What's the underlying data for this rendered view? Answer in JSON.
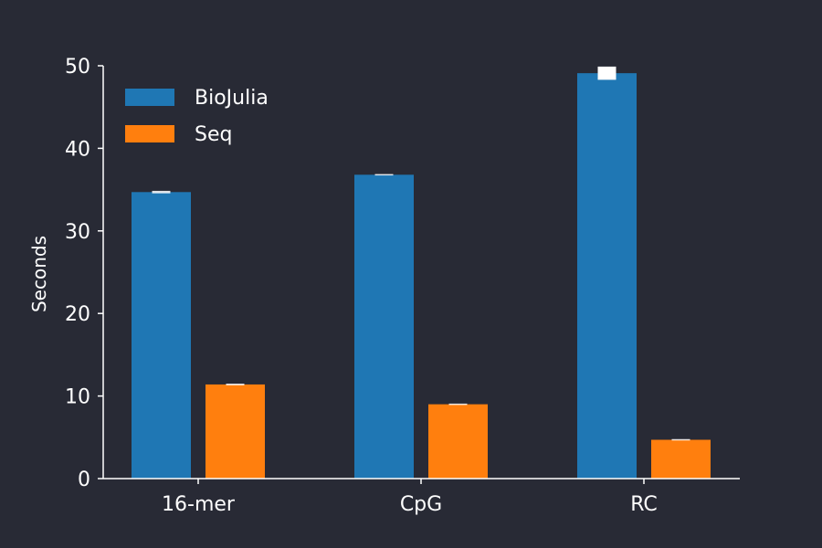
{
  "chart_data": {
    "type": "bar",
    "title": "",
    "xlabel": "",
    "ylabel": "Seconds",
    "categories": [
      "16-mer",
      "CpG",
      "RC"
    ],
    "series": [
      {
        "name": "BioJulia",
        "values": [
          34.7,
          36.8,
          49.1
        ],
        "errors": [
          0.15,
          0.08,
          0.8
        ],
        "color": "#1f77b4"
      },
      {
        "name": "Seq",
        "values": [
          11.4,
          9.0,
          4.7
        ],
        "errors": [
          0.1,
          0.05,
          0.08
        ],
        "color": "#ff7f0e"
      }
    ],
    "ylim": [
      0,
      50
    ],
    "yticks": [
      0,
      10,
      20,
      30,
      40,
      50
    ],
    "legend_position": "top-left",
    "grid": false,
    "background": "#282a35",
    "axis_color": "#ffffff",
    "error_color": "#ffffff"
  }
}
